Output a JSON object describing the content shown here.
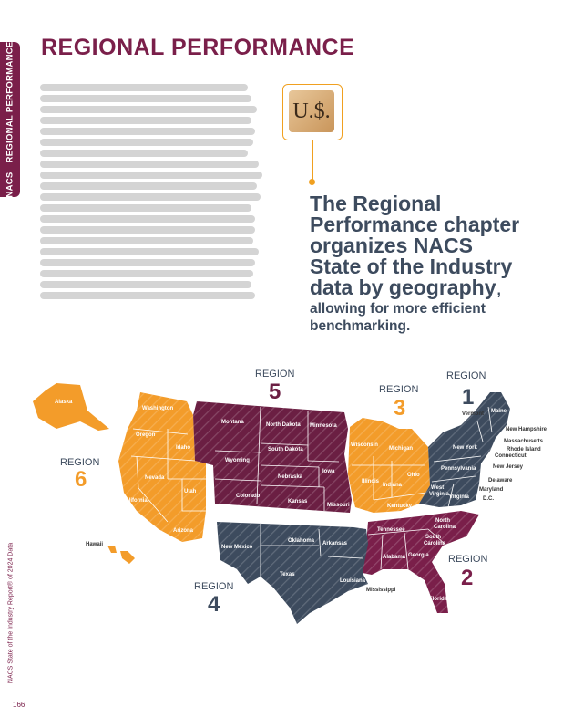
{
  "sidebar_tab": {
    "label_bold": "NACS",
    "label_rest": "REGIONAL PERFORMANCE"
  },
  "title": "REGIONAL PERFORMANCE",
  "coin_label": "U.$.",
  "callout": {
    "headline_lines": [
      "The Regional",
      "Performance chapter",
      "organizes NACS",
      "State of the Industry",
      "data by geography"
    ],
    "headline_end": ",",
    "sub_lines": [
      "allowing for more efficient",
      "benchmarking."
    ]
  },
  "colors": {
    "region1": "#3d4b5e",
    "region2": "#7a1f4a",
    "region3": "#f39c2a",
    "region4": "#3d4b5e",
    "region5": "#6b1f43",
    "region6": "#f39c2a",
    "accent": "#7a1f4a"
  },
  "regions": [
    {
      "label": "REGION",
      "number": "1"
    },
    {
      "label": "REGION",
      "number": "2"
    },
    {
      "label": "REGION",
      "number": "3"
    },
    {
      "label": "REGION",
      "number": "4"
    },
    {
      "label": "REGION",
      "number": "5"
    },
    {
      "label": "REGION",
      "number": "6"
    }
  ],
  "states": {
    "alaska": "Alaska",
    "hawaii": "Hawaii",
    "washington": "Washington",
    "oregon": "Oregon",
    "idaho": "Idaho",
    "nevada": "Nevada",
    "california": "California",
    "utah": "Utah",
    "arizona": "Arizona",
    "montana": "Montana",
    "wyoming": "Wyoming",
    "colorado": "Colorado",
    "north_dakota": "North Dakota",
    "south_dakota": "South Dakota",
    "nebraska": "Nebraska",
    "kansas": "Kansas",
    "minnesota": "Minnesota",
    "iowa": "Iowa",
    "missouri": "Missouri",
    "wisconsin": "Wisconsin",
    "michigan": "Michigan",
    "illinois": "Illinois",
    "indiana": "Indiana",
    "ohio": "Ohio",
    "kentucky": "Kentucky",
    "west_virginia_1": "West",
    "west_virginia_2": "Virginia",
    "vermont": "Vermont",
    "maine": "Maine",
    "new_hampshire": "New Hampshire",
    "massachusetts": "Massachusetts",
    "rhode_island": "Rhode Island",
    "connecticut": "Connecticut",
    "new_york": "New York",
    "new_jersey": "New Jersey",
    "pennsylvania": "Pennsylvania",
    "delaware": "Delaware",
    "maryland": "Maryland",
    "dc": "D.C.",
    "virginia": "Virginia",
    "new_mexico": "New Mexico",
    "oklahoma": "Oklahoma",
    "arkansas": "Arkansas",
    "texas": "Texas",
    "louisiana": "Louisiana",
    "tennessee": "Tennessee",
    "north_carolina_1": "North",
    "north_carolina_2": "Carolina",
    "south_carolina_1": "South",
    "south_carolina_2": "Carolina",
    "georgia": "Georgia",
    "alabama": "Alabama",
    "mississippi": "Mississippi",
    "florida": "Florida"
  },
  "footer_vertical": "NACS State of the Industry Report® of 2024 Data",
  "page_number": "166"
}
